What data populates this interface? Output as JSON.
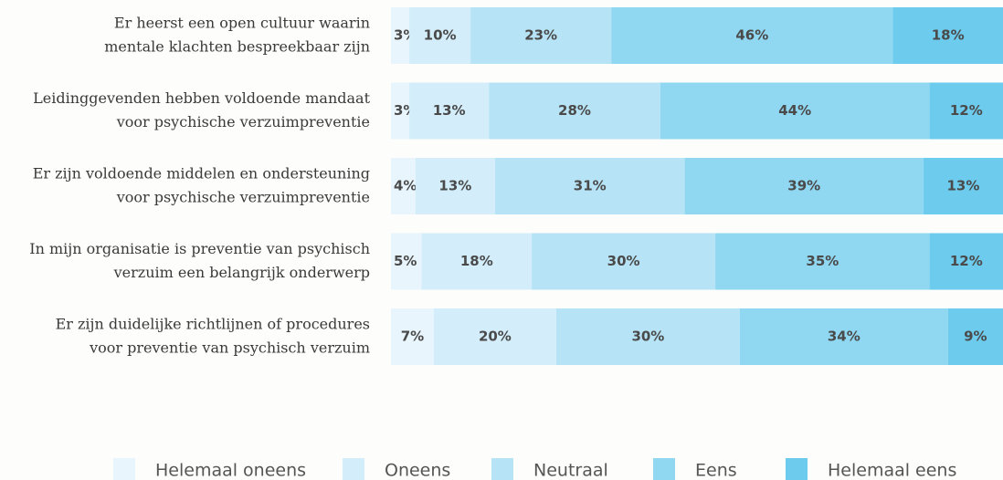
{
  "chart_data": {
    "type": "stacked_bar_horizontal",
    "categories": [
      [
        "Er heerst een open cultuur waarin",
        "mentale klachten bespreekbaar zijn"
      ],
      [
        "Leidinggevenden hebben voldoende mandaat",
        "voor psychische verzuimpreventie"
      ],
      [
        "Er zijn voldoende middelen en ondersteuning",
        "voor psychische verzuimpreventie"
      ],
      [
        "In mijn organisatie is preventie van psychisch",
        "verzuim een belangrijk onderwerp"
      ],
      [
        "Er zijn duidelijke richtlijnen of procedures",
        "voor preventie van psychisch verzuim"
      ]
    ],
    "xlim": [
      0,
      100
    ],
    "legend": "bottom",
    "series": [
      {
        "name": "Helemaal oneens",
        "color": "#e8f5fc",
        "values": [
          3,
          3,
          4,
          5,
          7
        ],
        "value_labels": [
          "3%",
          "3%",
          "4%",
          "5%",
          "7%"
        ]
      },
      {
        "name": "Oneens",
        "color": "#d3eefa",
        "values": [
          10,
          13,
          13,
          18,
          20
        ],
        "value_labels": [
          "10%",
          "13%",
          "13%",
          "18%",
          "20%"
        ]
      },
      {
        "name": "Neutraal",
        "color": "#b6e4f6",
        "values": [
          23,
          28,
          31,
          30,
          30
        ],
        "value_labels": [
          "23%",
          "28%",
          "31%",
          "30%",
          "30%"
        ]
      },
      {
        "name": "Eens",
        "color": "#90d7f2",
        "values": [
          46,
          44,
          39,
          35,
          34
        ],
        "value_labels": [
          "46%",
          "44%",
          "39%",
          "35%",
          "34%"
        ]
      },
      {
        "name": "Helemaal eens",
        "color": "#6dcbed",
        "values": [
          18,
          12,
          13,
          12,
          9
        ],
        "value_labels": [
          "18%",
          "12%",
          "13%",
          "12%",
          "9%"
        ]
      }
    ]
  }
}
